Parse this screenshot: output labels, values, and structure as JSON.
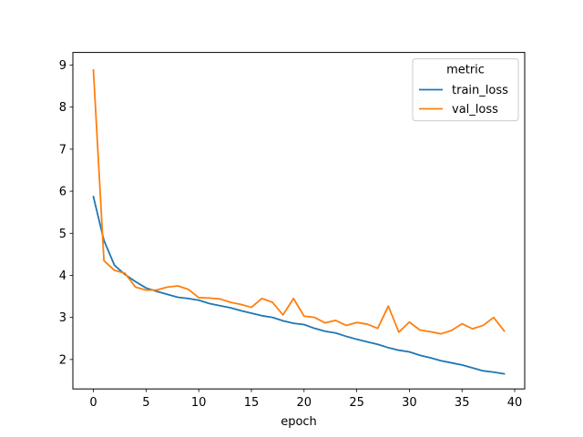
{
  "chart_data": {
    "type": "line",
    "title": "",
    "xlabel": "epoch",
    "ylabel": "",
    "xlim": [
      -1.95,
      40.95
    ],
    "ylim": [
      1.3,
      9.3
    ],
    "xticks": [
      0,
      5,
      10,
      15,
      20,
      25,
      30,
      35,
      40
    ],
    "yticks": [
      2,
      3,
      4,
      5,
      6,
      7,
      8,
      9
    ],
    "xtick_labels": [
      "0",
      "5",
      "10",
      "15",
      "20",
      "25",
      "30",
      "35",
      "40"
    ],
    "ytick_labels": [
      "2",
      "3",
      "4",
      "5",
      "6",
      "7",
      "8",
      "9"
    ],
    "grid": false,
    "legend": {
      "title": "metric",
      "position": "top-right"
    },
    "x": [
      0,
      1,
      2,
      3,
      4,
      5,
      6,
      7,
      8,
      9,
      10,
      11,
      12,
      13,
      14,
      15,
      16,
      17,
      18,
      19,
      20,
      21,
      22,
      23,
      24,
      25,
      26,
      27,
      28,
      29,
      30,
      31,
      32,
      33,
      34,
      35,
      36,
      37,
      38,
      39
    ],
    "series": [
      {
        "name": "train_loss",
        "color": "#1f77b4",
        "values": [
          5.87,
          4.83,
          4.24,
          4.02,
          3.85,
          3.7,
          3.62,
          3.55,
          3.48,
          3.45,
          3.41,
          3.33,
          3.28,
          3.23,
          3.16,
          3.1,
          3.04,
          3.0,
          2.92,
          2.86,
          2.83,
          2.74,
          2.67,
          2.63,
          2.55,
          2.48,
          2.42,
          2.36,
          2.28,
          2.22,
          2.18,
          2.1,
          2.04,
          1.97,
          1.92,
          1.87,
          1.8,
          1.73,
          1.7,
          1.66
        ]
      },
      {
        "name": "val_loss",
        "color": "#ff7f0e",
        "values": [
          8.88,
          4.35,
          4.12,
          4.05,
          3.72,
          3.65,
          3.65,
          3.72,
          3.75,
          3.67,
          3.47,
          3.46,
          3.44,
          3.36,
          3.31,
          3.24,
          3.45,
          3.36,
          3.06,
          3.45,
          3.03,
          3.0,
          2.87,
          2.93,
          2.81,
          2.88,
          2.84,
          2.74,
          3.27,
          2.65,
          2.89,
          2.7,
          2.66,
          2.61,
          2.69,
          2.85,
          2.73,
          2.81,
          3.0,
          2.68
        ]
      }
    ]
  }
}
